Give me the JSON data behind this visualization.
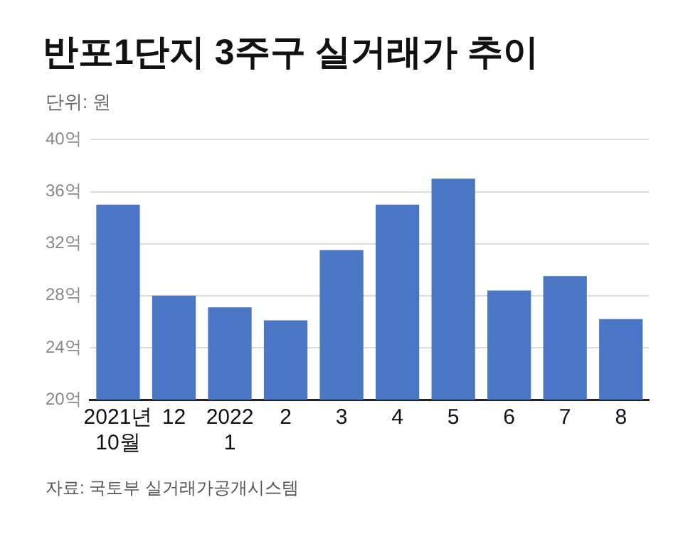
{
  "chart_data": {
    "type": "bar",
    "title": "반포1단지 3주구 실거래가 추이",
    "subtitle": "단위: 원",
    "categories": [
      "2021년\n10월",
      "12",
      "2022\n1",
      "2",
      "3",
      "4",
      "5",
      "6",
      "7",
      "8"
    ],
    "values": [
      35,
      28,
      27.1,
      26.1,
      31.5,
      35,
      37,
      28.4,
      29.5,
      26.2
    ],
    "color": "#4a76c6",
    "ylim": [
      20,
      40
    ],
    "yticks": [
      {
        "value": 20,
        "label": "20억"
      },
      {
        "value": 24,
        "label": "24억"
      },
      {
        "value": 28,
        "label": "28억"
      },
      {
        "value": 32,
        "label": "32억"
      },
      {
        "value": 36,
        "label": "36억"
      },
      {
        "value": 40,
        "label": "40억"
      }
    ],
    "grid": "y",
    "legend": false,
    "annotations": [
      "자료: 국토부 실거래가공개시스템"
    ]
  }
}
